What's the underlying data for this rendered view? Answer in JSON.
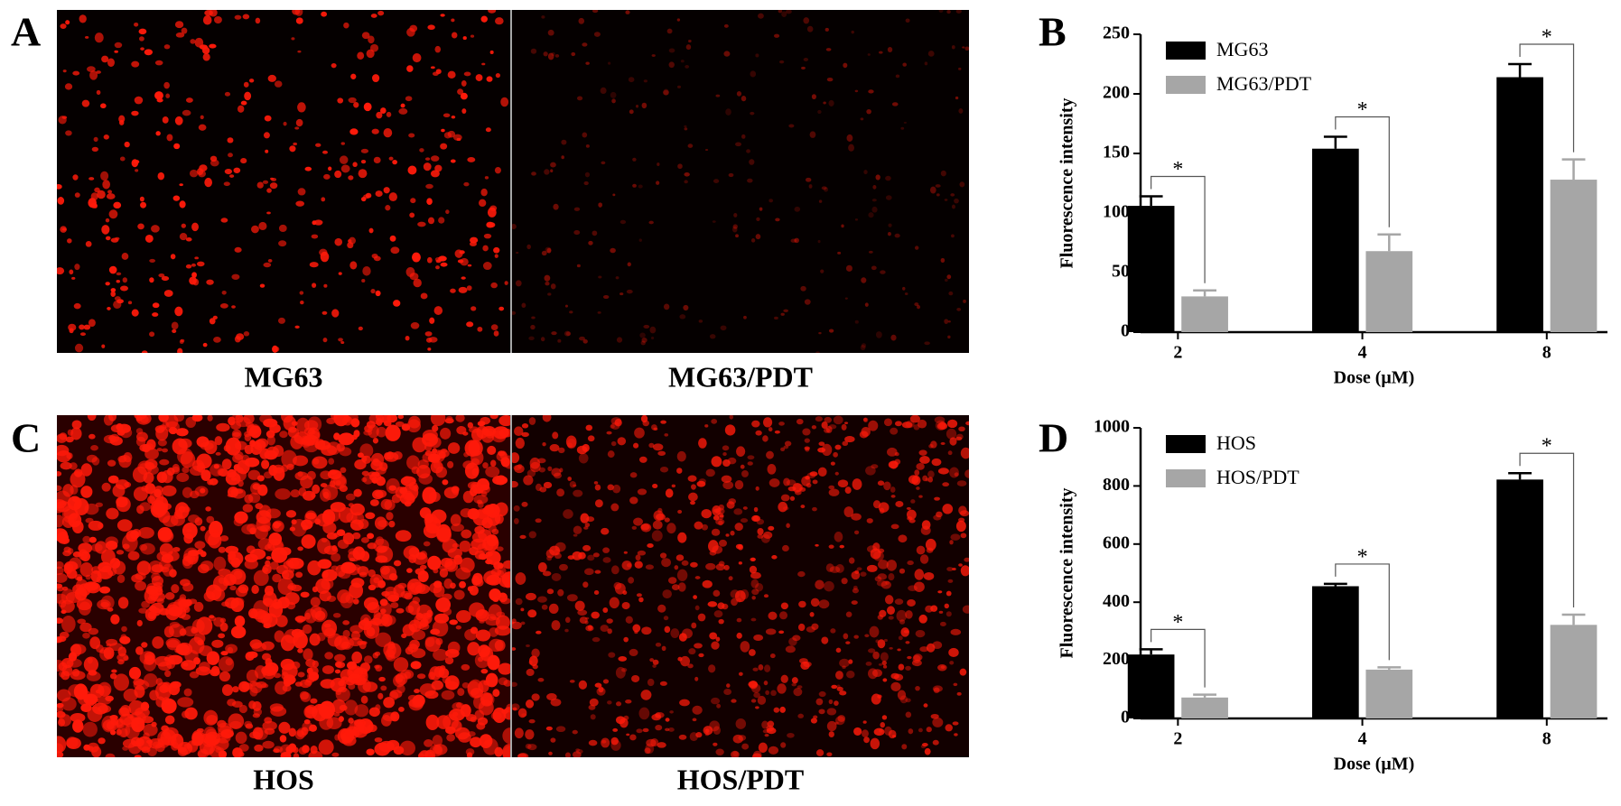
{
  "panels": {
    "labels": [
      "A",
      "B",
      "C",
      "D"
    ],
    "captions": [
      "MG63",
      "MG63/PDT",
      "HOS",
      "HOS/PDT"
    ]
  },
  "chart_data": [
    {
      "type": "bar",
      "ylabel": "Fluorescence intensity",
      "xlabel": "Dose (μM)",
      "categories": [
        "2",
        "4",
        "8"
      ],
      "series": [
        {
          "name": "MG63",
          "color": "#000000",
          "values": [
            106,
            154,
            214
          ],
          "errors": [
            8,
            10,
            11
          ]
        },
        {
          "name": "MG63/PDT",
          "color": "#a6a6a6",
          "values": [
            30,
            68,
            128
          ],
          "errors": [
            5,
            14,
            17
          ]
        }
      ],
      "annotations": [
        "*",
        "*",
        "*"
      ],
      "ylim": [
        0,
        250
      ],
      "yticks": [
        0,
        50,
        100,
        150,
        200,
        250
      ],
      "grid": false,
      "legend": "upper left"
    },
    {
      "type": "bar",
      "ylabel": "Fluorescence intensity",
      "xlabel": "Dose (μM)",
      "categories": [
        "2",
        "4",
        "8"
      ],
      "series": [
        {
          "name": "HOS",
          "color": "#000000",
          "values": [
            220,
            455,
            822
          ],
          "errors": [
            18,
            8,
            22
          ]
        },
        {
          "name": "HOS/PDT",
          "color": "#a6a6a6",
          "values": [
            72,
            168,
            322
          ],
          "errors": [
            10,
            8,
            35
          ]
        }
      ],
      "annotations": [
        "*",
        "*",
        "*"
      ],
      "ylim": [
        0,
        1000
      ],
      "yticks": [
        0,
        200,
        400,
        600,
        800,
        1000
      ],
      "grid": false,
      "legend": "upper left"
    }
  ]
}
